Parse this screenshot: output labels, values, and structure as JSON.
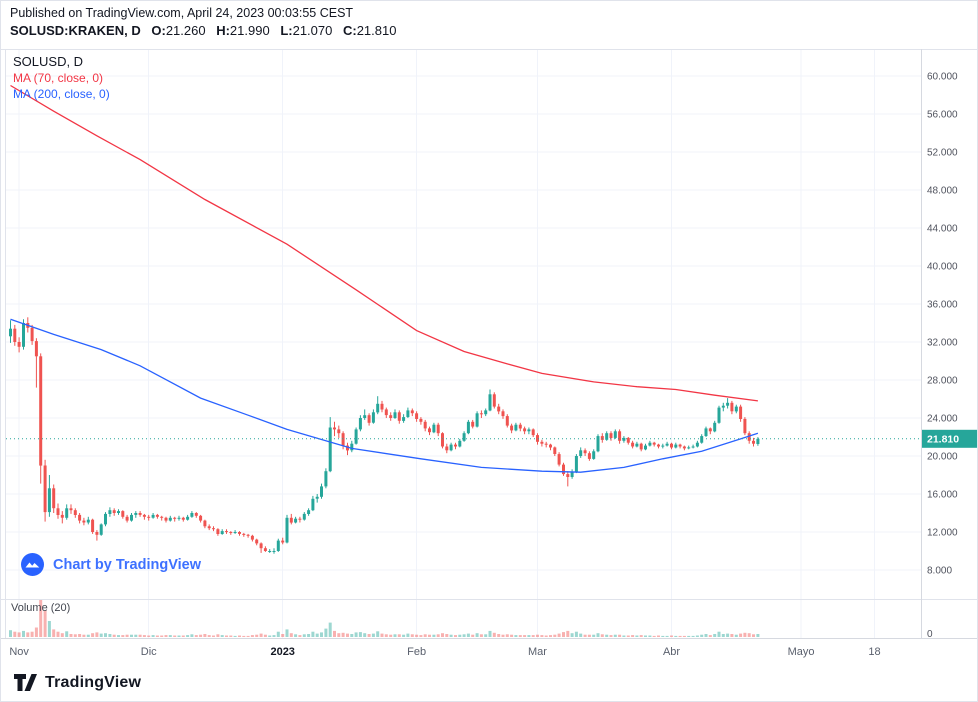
{
  "header": {
    "published_line": "Published on TradingView.com, April 24, 2023 00:03:55 CEST",
    "symbol_line": {
      "symbol": "SOLUSD:KRAKEN, D",
      "ohlc": [
        {
          "label": "O:",
          "value": "21.260"
        },
        {
          "label": "H:",
          "value": "21.990"
        },
        {
          "label": "L:",
          "value": "21.070"
        },
        {
          "label": "C:",
          "value": "21.810"
        }
      ]
    }
  },
  "legend": {
    "title": "SOLUSD, D",
    "ma1": "MA (70, close, 0)",
    "ma2": "MA (200, close, 0)"
  },
  "watermark": {
    "text": "Chart by TradingView"
  },
  "volume_pane": {
    "label": "Volume (20)",
    "zero_label": "0"
  },
  "footer": {
    "brand": "TradingView"
  },
  "colors": {
    "up": "#26a69a",
    "down": "#ef5350",
    "vol_up": "rgba(38,166,154,0.45)",
    "vol_down": "rgba(239,83,80,0.45)",
    "grid": "#f0f3fa",
    "border": "#e0e3eb",
    "axis_line": "#d6d9e0",
    "price_label_bg": "#26a69a",
    "attribution_blue": "#2962FF",
    "text_dark": "#131722",
    "text_axis": "#50535e"
  },
  "chart_data": {
    "type": "candlestick",
    "symbol": "SOLUSD:KRAKEN",
    "interval": "D",
    "last_price": 21.81,
    "last_price_label": "21.810",
    "y_axis": {
      "min": 8,
      "max": 60,
      "step": 4,
      "labels": [
        "60.000",
        "56.000",
        "52.000",
        "48.000",
        "44.000",
        "40.000",
        "36.000",
        "32.000",
        "28.000",
        "24.000",
        "20.000",
        "16.000",
        "12.000",
        "8.000"
      ]
    },
    "x_ticks": [
      {
        "label": "Nov",
        "index": 2,
        "bold": false
      },
      {
        "label": "Dic",
        "index": 32,
        "bold": false
      },
      {
        "label": "2023",
        "index": 63,
        "bold": true
      },
      {
        "label": "Feb",
        "index": 94,
        "bold": false
      },
      {
        "label": "Mar",
        "index": 122,
        "bold": false
      },
      {
        "label": "Abr",
        "index": 153,
        "bold": false
      },
      {
        "label": "Mayo",
        "index": 183,
        "bold": false
      },
      {
        "label": "18",
        "index": 200,
        "bold": false
      }
    ],
    "volume_scale_max": 100,
    "ma_overlays": [
      {
        "name": "MA 70",
        "color": "#F23645",
        "points": [
          [
            0,
            59
          ],
          [
            10,
            56.3
          ],
          [
            20,
            53.7
          ],
          [
            30,
            51.2
          ],
          [
            45,
            47
          ],
          [
            64,
            42.3
          ],
          [
            80,
            37.5
          ],
          [
            94,
            33.2
          ],
          [
            105,
            31
          ],
          [
            115,
            29.7
          ],
          [
            123,
            28.7
          ],
          [
            135,
            27.8
          ],
          [
            145,
            27.3
          ],
          [
            154,
            27
          ],
          [
            163,
            26.4
          ],
          [
            173,
            25.8
          ]
        ]
      },
      {
        "name": "MA 200",
        "color": "#2962FF",
        "points": [
          [
            0,
            34.4
          ],
          [
            10,
            32.8
          ],
          [
            21,
            31.2
          ],
          [
            30,
            29.5
          ],
          [
            44,
            26.1
          ],
          [
            55,
            24.3
          ],
          [
            64,
            22.8
          ],
          [
            79,
            20.8
          ],
          [
            95,
            19.7
          ],
          [
            109,
            18.8
          ],
          [
            123,
            18.4
          ],
          [
            132,
            18.3
          ],
          [
            142,
            18.8
          ],
          [
            151,
            19.7
          ],
          [
            160,
            20.5
          ],
          [
            169,
            21.8
          ],
          [
            173,
            22.4
          ]
        ]
      }
    ],
    "candles_ohlcv": [
      [
        32.6,
        34.3,
        31.9,
        33.4,
        18
      ],
      [
        33.4,
        33.8,
        31.6,
        32.0,
        14
      ],
      [
        32.0,
        32.5,
        30.9,
        31.5,
        12
      ],
      [
        31.5,
        34.4,
        31.2,
        34.0,
        16
      ],
      [
        34.0,
        34.6,
        33.0,
        33.5,
        12
      ],
      [
        33.5,
        33.8,
        31.7,
        32.1,
        14
      ],
      [
        32.1,
        32.4,
        27.2,
        30.5,
        25
      ],
      [
        30.5,
        30.8,
        17.1,
        19.0,
        100
      ],
      [
        19.0,
        19.6,
        13.1,
        14.1,
        70
      ],
      [
        14.1,
        18.0,
        13.6,
        16.6,
        42
      ],
      [
        16.6,
        17.0,
        14.0,
        14.5,
        20
      ],
      [
        14.5,
        15.0,
        13.4,
        13.8,
        14
      ],
      [
        13.8,
        14.2,
        12.9,
        13.5,
        10
      ],
      [
        13.5,
        14.9,
        13.3,
        14.5,
        15
      ],
      [
        14.5,
        14.9,
        13.9,
        14.3,
        8
      ],
      [
        14.3,
        14.5,
        13.5,
        13.8,
        7
      ],
      [
        13.8,
        14.0,
        12.9,
        13.2,
        8
      ],
      [
        13.2,
        13.5,
        12.7,
        13.0,
        6
      ],
      [
        13.0,
        13.6,
        12.8,
        13.3,
        6
      ],
      [
        13.3,
        13.4,
        11.8,
        12.0,
        10
      ],
      [
        12.0,
        12.2,
        11.1,
        11.7,
        12
      ],
      [
        11.7,
        12.9,
        11.6,
        12.8,
        9
      ],
      [
        12.8,
        14.1,
        12.6,
        13.9,
        10
      ],
      [
        13.9,
        14.6,
        13.6,
        14.3,
        8
      ],
      [
        14.3,
        14.5,
        13.7,
        14.0,
        6
      ],
      [
        14.0,
        14.4,
        13.8,
        14.2,
        5
      ],
      [
        14.2,
        14.3,
        13.4,
        13.6,
        5
      ],
      [
        13.6,
        13.8,
        13.0,
        13.2,
        6
      ],
      [
        13.2,
        14.0,
        13.1,
        13.8,
        6
      ],
      [
        13.8,
        14.2,
        13.5,
        14.0,
        6
      ],
      [
        14.0,
        14.2,
        13.6,
        13.8,
        6
      ],
      [
        13.8,
        13.9,
        13.3,
        13.6,
        5
      ],
      [
        13.6,
        13.8,
        13.2,
        13.5,
        4
      ],
      [
        13.5,
        14.0,
        13.4,
        13.8,
        5
      ],
      [
        13.8,
        13.9,
        13.4,
        13.6,
        4
      ],
      [
        13.6,
        13.7,
        13.2,
        13.5,
        4
      ],
      [
        13.5,
        13.6,
        13.0,
        13.2,
        5
      ],
      [
        13.2,
        13.7,
        13.1,
        13.5,
        5
      ],
      [
        13.5,
        13.6,
        13.1,
        13.4,
        4
      ],
      [
        13.4,
        13.7,
        13.2,
        13.5,
        4
      ],
      [
        13.5,
        13.6,
        13.1,
        13.3,
        4
      ],
      [
        13.3,
        13.8,
        13.2,
        13.6,
        5
      ],
      [
        13.6,
        14.2,
        13.5,
        14.0,
        7
      ],
      [
        14.0,
        14.1,
        13.5,
        13.7,
        5
      ],
      [
        13.7,
        13.8,
        13.0,
        13.2,
        6
      ],
      [
        13.2,
        13.3,
        12.4,
        12.6,
        8
      ],
      [
        12.6,
        12.8,
        12.2,
        12.4,
        5
      ],
      [
        12.4,
        12.6,
        12.1,
        12.3,
        4
      ],
      [
        12.3,
        12.4,
        11.6,
        11.8,
        7
      ],
      [
        11.8,
        12.3,
        11.7,
        12.1,
        5
      ],
      [
        12.1,
        12.3,
        11.8,
        12.0,
        4
      ],
      [
        12.0,
        12.1,
        11.7,
        11.9,
        4
      ],
      [
        11.9,
        12.2,
        11.8,
        12.0,
        3
      ],
      [
        12.0,
        12.1,
        11.6,
        11.8,
        4
      ],
      [
        11.8,
        11.9,
        11.5,
        11.7,
        3
      ],
      [
        11.7,
        11.8,
        11.4,
        11.6,
        3
      ],
      [
        11.6,
        11.7,
        11.0,
        11.2,
        5
      ],
      [
        11.2,
        11.3,
        10.6,
        10.8,
        6
      ],
      [
        10.8,
        10.9,
        9.8,
        10.3,
        9
      ],
      [
        10.3,
        10.5,
        9.9,
        10.0,
        6
      ],
      [
        10.0,
        10.2,
        9.8,
        10.0,
        4
      ],
      [
        10.0,
        10.3,
        9.7,
        10.0,
        5
      ],
      [
        10.0,
        11.3,
        9.9,
        11.1,
        14
      ],
      [
        11.1,
        11.4,
        10.7,
        10.9,
        8
      ],
      [
        10.9,
        13.8,
        10.8,
        13.5,
        20
      ],
      [
        13.5,
        13.9,
        12.8,
        13.0,
        10
      ],
      [
        13.0,
        13.6,
        12.9,
        13.4,
        7
      ],
      [
        13.4,
        13.6,
        13.0,
        13.3,
        5
      ],
      [
        13.3,
        14.1,
        13.2,
        13.9,
        7
      ],
      [
        13.9,
        14.5,
        13.7,
        14.3,
        8
      ],
      [
        14.3,
        15.8,
        14.2,
        15.5,
        14
      ],
      [
        15.5,
        16.0,
        15.1,
        15.7,
        9
      ],
      [
        15.7,
        17.1,
        15.5,
        16.8,
        12
      ],
      [
        16.8,
        18.7,
        16.6,
        18.4,
        22
      ],
      [
        18.4,
        24.1,
        18.3,
        23.0,
        38
      ],
      [
        23.0,
        23.6,
        22.1,
        22.8,
        16
      ],
      [
        22.8,
        23.2,
        21.9,
        22.4,
        10
      ],
      [
        22.4,
        22.6,
        20.7,
        21.1,
        11
      ],
      [
        21.1,
        21.4,
        20.1,
        20.6,
        9
      ],
      [
        20.6,
        21.6,
        20.4,
        21.3,
        8
      ],
      [
        21.3,
        23.0,
        21.2,
        22.8,
        12
      ],
      [
        22.8,
        24.3,
        22.6,
        24.0,
        13
      ],
      [
        24.0,
        24.9,
        23.8,
        24.3,
        10
      ],
      [
        24.3,
        24.5,
        23.2,
        23.5,
        8
      ],
      [
        23.5,
        24.9,
        23.4,
        24.6,
        9
      ],
      [
        24.6,
        26.3,
        24.4,
        25.5,
        15
      ],
      [
        25.5,
        25.8,
        24.6,
        24.9,
        9
      ],
      [
        24.9,
        25.1,
        24.0,
        24.3,
        7
      ],
      [
        24.3,
        24.6,
        23.7,
        24.0,
        6
      ],
      [
        24.0,
        24.9,
        23.9,
        24.6,
        7
      ],
      [
        24.6,
        24.8,
        23.4,
        23.7,
        7
      ],
      [
        23.7,
        24.4,
        23.5,
        24.1,
        6
      ],
      [
        24.1,
        25.1,
        24.0,
        24.8,
        9
      ],
      [
        24.8,
        25.0,
        24.2,
        24.5,
        7
      ],
      [
        24.5,
        24.7,
        23.6,
        23.9,
        6
      ],
      [
        23.9,
        24.1,
        23.3,
        23.6,
        5
      ],
      [
        23.6,
        23.8,
        22.6,
        22.9,
        7
      ],
      [
        22.9,
        23.1,
        22.2,
        22.5,
        6
      ],
      [
        22.5,
        23.5,
        22.4,
        23.3,
        6
      ],
      [
        23.3,
        23.5,
        22.1,
        22.4,
        7
      ],
      [
        22.4,
        22.5,
        20.8,
        21.0,
        10
      ],
      [
        21.0,
        21.3,
        20.3,
        20.6,
        8
      ],
      [
        20.6,
        21.4,
        20.5,
        21.2,
        6
      ],
      [
        21.2,
        21.4,
        20.7,
        21.0,
        5
      ],
      [
        21.0,
        21.8,
        20.9,
        21.6,
        6
      ],
      [
        21.6,
        22.6,
        21.5,
        22.4,
        7
      ],
      [
        22.4,
        23.8,
        22.3,
        23.6,
        9
      ],
      [
        23.6,
        23.8,
        22.9,
        23.1,
        6
      ],
      [
        23.1,
        24.7,
        23.0,
        24.5,
        10
      ],
      [
        24.5,
        24.8,
        24.0,
        24.4,
        7
      ],
      [
        24.4,
        25.0,
        24.2,
        24.8,
        7
      ],
      [
        24.8,
        27.0,
        24.7,
        26.5,
        16
      ],
      [
        26.5,
        26.7,
        25.0,
        25.2,
        11
      ],
      [
        25.2,
        25.5,
        24.4,
        24.7,
        8
      ],
      [
        24.7,
        24.9,
        23.9,
        24.2,
        6
      ],
      [
        24.2,
        24.4,
        23.0,
        23.2,
        7
      ],
      [
        23.2,
        23.4,
        22.4,
        22.7,
        6
      ],
      [
        22.7,
        23.5,
        22.6,
        23.3,
        5
      ],
      [
        23.3,
        23.5,
        22.6,
        22.9,
        5
      ],
      [
        22.9,
        23.1,
        22.3,
        22.6,
        5
      ],
      [
        22.6,
        23.0,
        22.3,
        22.8,
        5
      ],
      [
        22.8,
        22.9,
        22.0,
        22.2,
        5
      ],
      [
        22.2,
        22.4,
        21.2,
        21.5,
        6
      ],
      [
        21.5,
        21.7,
        21.0,
        21.3,
        5
      ],
      [
        21.3,
        21.5,
        20.9,
        21.2,
        4
      ],
      [
        21.2,
        21.3,
        20.6,
        20.9,
        5
      ],
      [
        20.9,
        21.0,
        20.0,
        20.2,
        6
      ],
      [
        20.2,
        20.4,
        18.9,
        19.1,
        9
      ],
      [
        19.1,
        19.3,
        17.9,
        18.1,
        13
      ],
      [
        18.1,
        18.4,
        16.8,
        17.8,
        16
      ],
      [
        17.8,
        18.6,
        17.6,
        18.3,
        10
      ],
      [
        18.3,
        20.2,
        18.2,
        20.0,
        14
      ],
      [
        20.0,
        20.9,
        19.8,
        20.6,
        9
      ],
      [
        20.6,
        20.8,
        20.0,
        20.3,
        6
      ],
      [
        20.3,
        20.5,
        19.5,
        19.7,
        6
      ],
      [
        19.7,
        20.7,
        19.6,
        20.5,
        6
      ],
      [
        20.5,
        22.3,
        20.4,
        22.1,
        10
      ],
      [
        22.1,
        22.4,
        21.4,
        21.7,
        7
      ],
      [
        21.7,
        22.6,
        21.6,
        22.4,
        6
      ],
      [
        22.4,
        22.6,
        21.6,
        21.9,
        5
      ],
      [
        21.9,
        22.8,
        21.8,
        22.6,
        6
      ],
      [
        22.6,
        22.8,
        21.3,
        21.6,
        6
      ],
      [
        21.6,
        22.1,
        21.4,
        21.9,
        4
      ],
      [
        21.9,
        22.0,
        21.2,
        21.4,
        4
      ],
      [
        21.4,
        21.6,
        20.8,
        21.0,
        5
      ],
      [
        21.0,
        21.5,
        20.9,
        21.3,
        4
      ],
      [
        21.3,
        21.4,
        20.5,
        20.7,
        5
      ],
      [
        20.7,
        21.3,
        20.6,
        21.1,
        4
      ],
      [
        21.1,
        21.6,
        21.0,
        21.4,
        4
      ],
      [
        21.4,
        21.5,
        21.0,
        21.2,
        3
      ],
      [
        21.2,
        21.3,
        20.8,
        21.0,
        4
      ],
      [
        21.0,
        21.3,
        20.8,
        21.1,
        3
      ],
      [
        21.1,
        21.5,
        21.0,
        21.3,
        3
      ],
      [
        21.3,
        21.4,
        20.7,
        20.9,
        4
      ],
      [
        20.9,
        21.4,
        20.8,
        21.2,
        3
      ],
      [
        21.2,
        21.3,
        20.8,
        21.0,
        3
      ],
      [
        21.0,
        21.1,
        20.6,
        20.8,
        3
      ],
      [
        20.8,
        21.1,
        20.7,
        20.9,
        3
      ],
      [
        20.9,
        21.2,
        20.8,
        21.0,
        3
      ],
      [
        21.0,
        21.6,
        20.9,
        21.4,
        4
      ],
      [
        21.4,
        22.3,
        21.3,
        22.1,
        6
      ],
      [
        22.1,
        23.1,
        22.0,
        22.9,
        8
      ],
      [
        22.9,
        23.0,
        22.3,
        22.6,
        5
      ],
      [
        22.6,
        23.7,
        22.5,
        23.5,
        8
      ],
      [
        23.5,
        25.3,
        23.4,
        25.1,
        14
      ],
      [
        25.1,
        25.6,
        24.7,
        25.3,
        8
      ],
      [
        25.3,
        26.1,
        25.0,
        25.6,
        9
      ],
      [
        25.6,
        25.8,
        24.4,
        24.7,
        8
      ],
      [
        24.7,
        25.4,
        24.5,
        25.2,
        6
      ],
      [
        25.2,
        25.4,
        23.6,
        23.9,
        9
      ],
      [
        23.9,
        24.1,
        22.2,
        22.4,
        11
      ],
      [
        22.4,
        22.6,
        21.3,
        21.6,
        10
      ],
      [
        21.6,
        21.9,
        21.0,
        21.3,
        7
      ],
      [
        21.26,
        21.99,
        21.07,
        21.81,
        8
      ]
    ]
  }
}
